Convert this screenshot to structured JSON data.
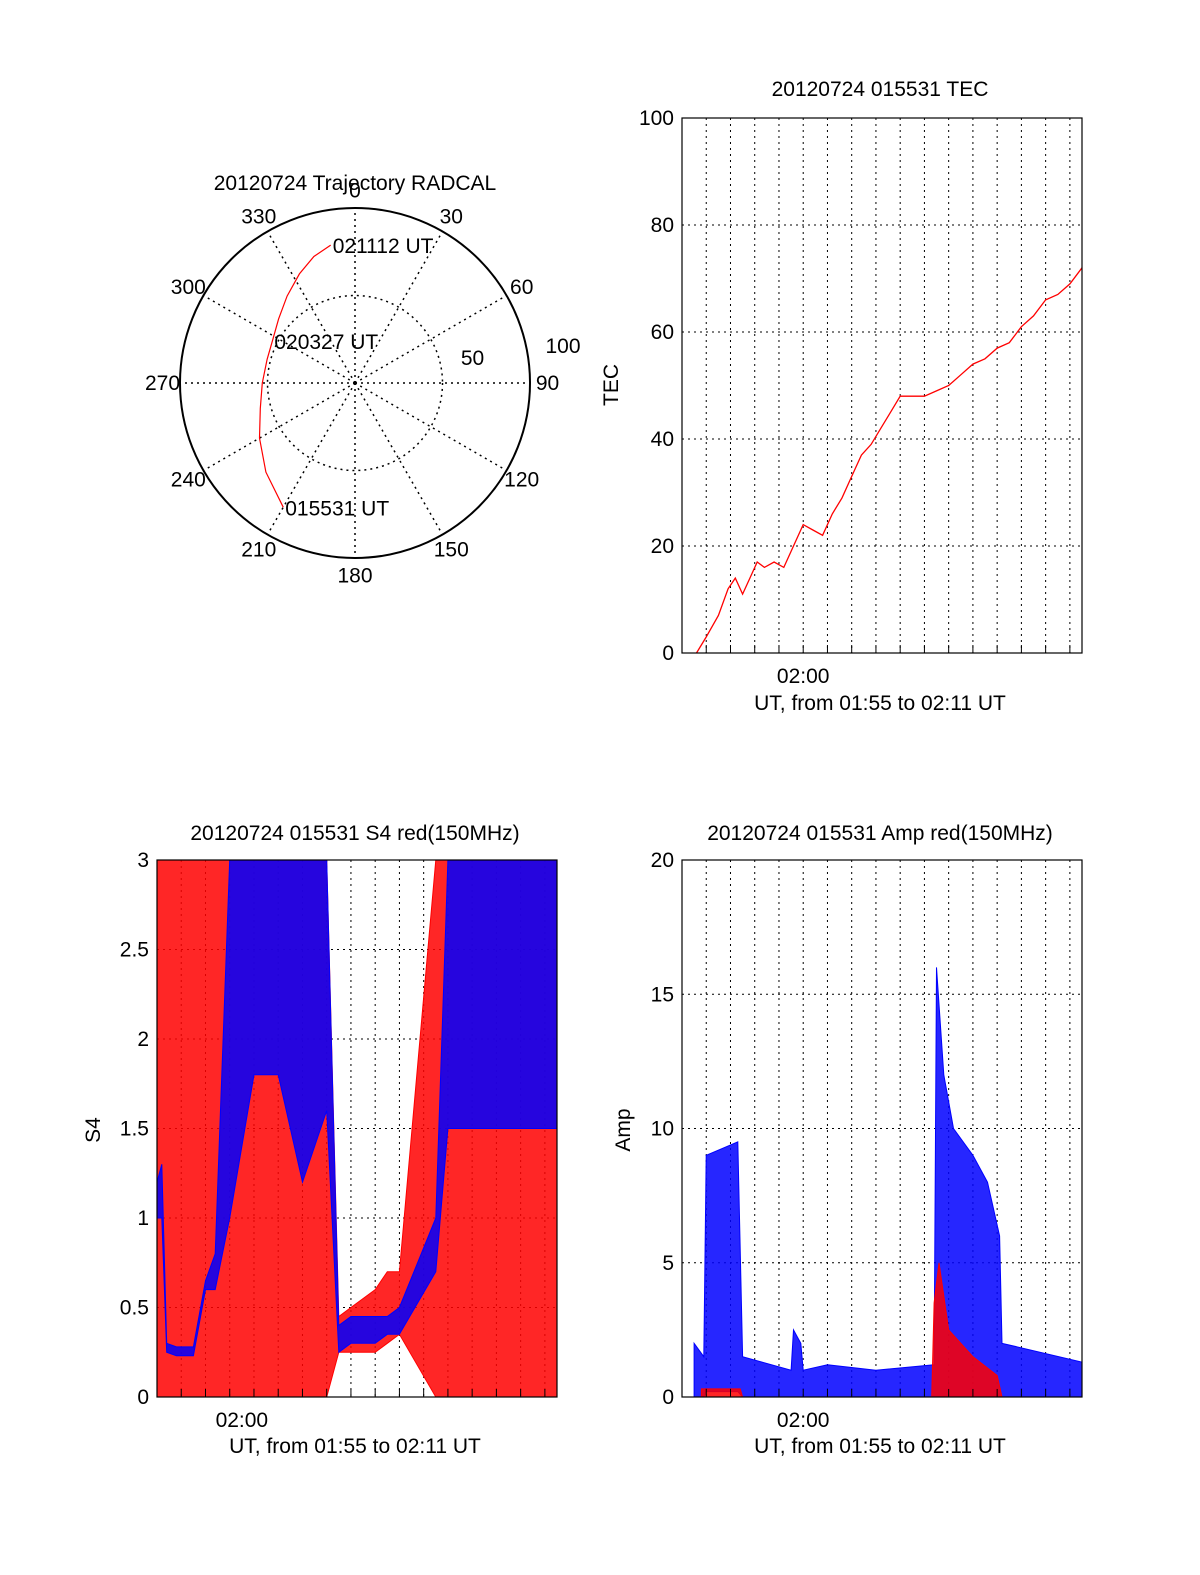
{
  "chart_data": [
    {
      "type": "polar",
      "title": "20120724 Trajectory RADCAL",
      "angle_labels": [
        "0",
        "30",
        "60",
        "90",
        "120",
        "150",
        "180",
        "210",
        "240",
        "270",
        "300",
        "330"
      ],
      "radial_labels": [
        "50",
        "100"
      ],
      "grid": true,
      "series": [
        {
          "color": "#ff0000",
          "points": [
            [
              210,
              82
            ],
            [
              225,
              72
            ],
            [
              240,
              63
            ],
            [
              255,
              56
            ],
            [
              270,
              53
            ],
            [
              285,
              52
            ],
            [
              297,
              53
            ],
            [
              310,
              57
            ],
            [
              322,
              63
            ],
            [
              333,
              70
            ],
            [
              342,
              76
            ],
            [
              350,
              80
            ]
          ]
        }
      ],
      "annotations": [
        {
          "text": "021112 UT",
          "angle": 350,
          "r": 80
        },
        {
          "text": "020327 UT",
          "angle": 297,
          "r": 53
        },
        {
          "text": "015531 UT",
          "angle": 210,
          "r": 82
        }
      ]
    },
    {
      "type": "line",
      "title": "20120724 015531 TEC",
      "xlabel": "UT, from 01:55 to 02:11 UT",
      "ylabel": "TEC",
      "xlim": [
        0,
        16.5
      ],
      "ylim": [
        0,
        100
      ],
      "x_tick_labels": [
        {
          "x": 5,
          "label": "02:00"
        }
      ],
      "y_ticks": [
        0,
        20,
        40,
        60,
        80,
        100
      ],
      "grid": true,
      "series": [
        {
          "color": "#ff0000",
          "x": [
            0.6,
            1.0,
            1.5,
            1.9,
            2.2,
            2.5,
            2.8,
            3.1,
            3.4,
            3.8,
            4.2,
            4.6,
            5.0,
            5.4,
            5.8,
            6.2,
            6.6,
            7.0,
            7.4,
            7.8,
            8.2,
            8.6,
            9.0,
            9.5,
            10.0,
            10.5,
            11.0,
            11.5,
            12.0,
            12.5,
            13.0,
            13.5,
            14.0,
            14.5,
            15.0,
            15.5,
            16.0,
            16.5
          ],
          "y": [
            0,
            3,
            7,
            12,
            14,
            11,
            14,
            17,
            16,
            17,
            16,
            20,
            24,
            23,
            22,
            26,
            29,
            33,
            37,
            39,
            42,
            45,
            48,
            48,
            48,
            49,
            50,
            52,
            54,
            55,
            57,
            58,
            61,
            63,
            66,
            67,
            69,
            72
          ]
        }
      ]
    },
    {
      "type": "line",
      "title": "20120724 015531 S4 red(150MHz)",
      "xlabel": "UT, from 01:55 to 02:11 UT",
      "ylabel": "S4",
      "xlim": [
        0,
        16.5
      ],
      "ylim": [
        0,
        3
      ],
      "x_tick_labels": [
        {
          "x": 3.5,
          "label": "02:00"
        }
      ],
      "y_ticks": [
        0,
        0.5,
        1,
        1.5,
        2,
        2.5,
        3
      ],
      "grid": true,
      "series": [
        {
          "color": "#ff0000",
          "envelope": true,
          "x": [
            0,
            0.2,
            0.4,
            0.8,
            1.5,
            2.0,
            2.4,
            3.0,
            4.0,
            5.0,
            6.0,
            7.0,
            7.5,
            8.0,
            9.0,
            9.5,
            10.0,
            11.5,
            12.0,
            13.0,
            14.0,
            16.0,
            16.5
          ],
          "y_min": [
            0,
            0,
            0,
            0,
            0,
            0,
            0,
            0,
            0,
            0,
            0,
            0,
            0.25,
            0.25,
            0.25,
            0.3,
            0.35,
            0,
            0,
            0,
            0,
            0,
            0
          ],
          "y_max": [
            3,
            3,
            3,
            3,
            3,
            3,
            3,
            3,
            3,
            3,
            3,
            3,
            0.45,
            0.5,
            0.6,
            0.7,
            0.7,
            3,
            3,
            3,
            3,
            3,
            3
          ]
        },
        {
          "color": "#0000ff",
          "envelope": true,
          "x": [
            0,
            0.2,
            0.4,
            0.8,
            1.5,
            2.0,
            2.4,
            3.0,
            4.0,
            5.0,
            6.0,
            7.0,
            7.5,
            8.0,
            9.0,
            9.5,
            10.0,
            11.5,
            12.0,
            13.0,
            14.0,
            16.0,
            16.5
          ],
          "y_min": [
            1.0,
            1.0,
            0.25,
            0.23,
            0.23,
            0.6,
            0.6,
            1.0,
            1.8,
            1.8,
            1.2,
            1.6,
            0.25,
            0.3,
            0.3,
            0.35,
            0.35,
            0.7,
            1.5,
            1.5,
            1.5,
            1.5,
            1.5
          ],
          "y_max": [
            1.2,
            1.3,
            0.3,
            0.28,
            0.28,
            0.65,
            0.8,
            3,
            3,
            3,
            3,
            3,
            0.4,
            0.45,
            0.45,
            0.45,
            0.5,
            1.0,
            3,
            3,
            3,
            3,
            3
          ]
        }
      ]
    },
    {
      "type": "line",
      "title": "20120724 015531 Amp red(150MHz)",
      "xlabel": "UT, from 01:55 to 02:11 UT",
      "ylabel": "Amp",
      "xlim": [
        0,
        16.5
      ],
      "ylim": [
        0,
        20
      ],
      "x_tick_labels": [
        {
          "x": 5,
          "label": "02:00"
        }
      ],
      "y_ticks": [
        0,
        5,
        10,
        15,
        20
      ],
      "grid": true,
      "series": [
        {
          "color": "#0000ff",
          "envelope": true,
          "x": [
            0.5,
            0.9,
            1.0,
            2.3,
            2.5,
            4.5,
            4.6,
            4.9,
            5.0,
            6.0,
            8.0,
            10.4,
            10.5,
            10.8,
            11.2,
            12.0,
            12.6,
            13.1,
            13.2,
            16.5
          ],
          "y_min": [
            0,
            0,
            0.2,
            0.2,
            0,
            0,
            0,
            0,
            0,
            0,
            0,
            0,
            0,
            0,
            0,
            0,
            0,
            0,
            0,
            0
          ],
          "y_max": [
            2.0,
            1.5,
            9.0,
            9.5,
            1.5,
            1.0,
            2.5,
            2.0,
            1.0,
            1.2,
            1.0,
            1.2,
            16.0,
            12.0,
            10.0,
            9.0,
            8.0,
            6.0,
            2.0,
            1.3
          ]
        },
        {
          "color": "#ff0000",
          "envelope": true,
          "x": [
            0.8,
            2.4,
            2.5,
            10.3,
            10.4,
            10.6,
            11.0,
            12.0,
            13.0,
            13.2
          ],
          "y_min": [
            0,
            0,
            0,
            0,
            0,
            0,
            0,
            0,
            0,
            0
          ],
          "y_max": [
            0.3,
            0.3,
            0,
            0,
            3.5,
            5.0,
            2.5,
            1.5,
            0.8,
            0
          ]
        }
      ]
    }
  ]
}
